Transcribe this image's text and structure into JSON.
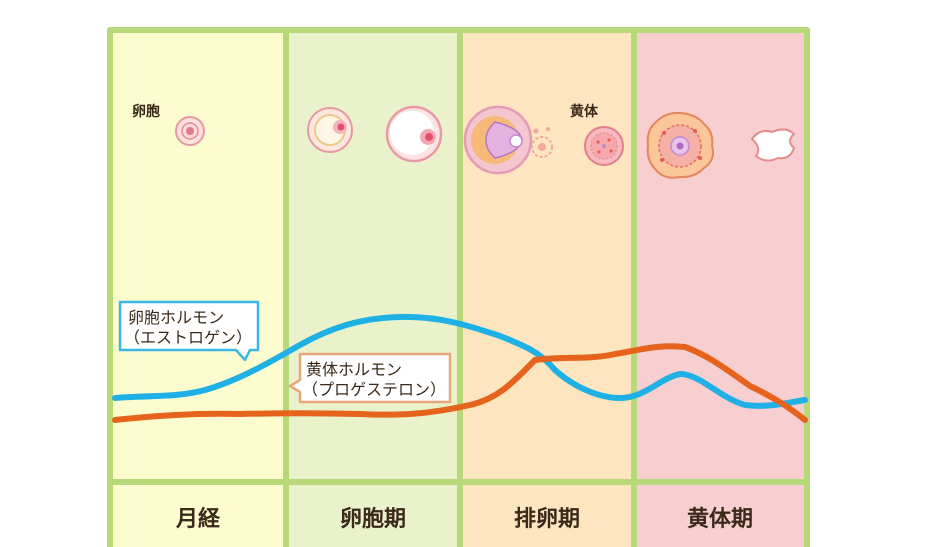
{
  "labels": {
    "follicle": "卵胞",
    "corpus_luteum": "黄体"
  },
  "callouts": {
    "estrogen": {
      "line1": "卵胞ホルモン",
      "line2": "（エストロゲン）"
    },
    "progesterone": {
      "line1": "黄体ホルモン",
      "line2": "（プロゲステロン）"
    }
  },
  "phases": [
    "月経",
    "卵胞期",
    "排卵期",
    "黄体期"
  ],
  "colors": {
    "menstrual_bg": "#fdfccf",
    "follicular_bg": "#eaf2cc",
    "ovulation_bg": "#fde6bf",
    "luteal_bg": "#f8cfd0",
    "border": "#b7d97a",
    "estrogen_line": "#1fb0e6",
    "progesterone_line": "#e5631c",
    "estrogen_box": "#3cb6e6",
    "progesterone_box": "#e9a57c"
  }
}
